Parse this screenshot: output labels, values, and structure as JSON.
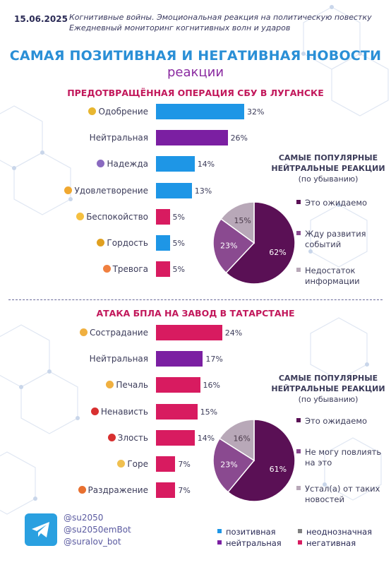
{
  "header": {
    "date": "15.06.2025",
    "subtitle_1": "Когнитивные войны. Эмоциональная реакция на политическую повестку",
    "subtitle_2": "Ежедневный мониторинг когнитивных волн и ударов",
    "title": "САМАЯ ПОЗИТИВНАЯ И НЕГАТИВНАЯ НОВОСТИ",
    "title_2": "реакции"
  },
  "colors": {
    "positive": "#1e96e6",
    "neutral": "#7b1fa2",
    "negative": "#d81b60",
    "ambiguous": "#808080",
    "pie_dark": "#5a1055",
    "pie_mid": "#8a4a90",
    "pie_light": "#b8a8b8"
  },
  "chart_data": [
    {
      "type": "bar",
      "title": "ПРЕДОТВРАЩЁННАЯ ОПЕРАЦИЯ СБУ В ЛУГАНСКЕ",
      "categories": [
        "Одобрение",
        "Нейтральная",
        "Надежда",
        "Удовлетворение",
        "Беспокойство",
        "Гордость",
        "Тревога"
      ],
      "values": [
        32,
        26,
        14,
        13,
        5,
        5,
        5
      ],
      "value_labels": [
        "32%",
        "26%",
        "14%",
        "13%",
        "5%",
        "5%",
        "5%"
      ],
      "sentiment": [
        "positive",
        "neutral",
        "positive",
        "positive",
        "negative",
        "positive",
        "negative"
      ],
      "emoji_icons": [
        "handshake-icon",
        "",
        "hands-icon",
        "smile-icon",
        "worried-icon",
        "trophy-icon",
        "anxious-icon"
      ]
    },
    {
      "type": "pie",
      "title": "САМЫЕ ПОПУЛЯРНЫЕ НЕЙТРАЛЬНЫЕ РЕАКЦИИ",
      "subtitle": "(по убыванию)",
      "slices": [
        {
          "label": "Это ожидаемо",
          "value": 62,
          "text": "62%"
        },
        {
          "label": "Жду развития событий",
          "value": 23,
          "text": "23%"
        },
        {
          "label": "Недостаток информации",
          "value": 15,
          "text": "15%"
        }
      ],
      "legend_lines": [
        [
          "Это ожидаемо"
        ],
        [
          "Жду развития",
          "событий"
        ],
        [
          "Недостаток",
          "информации"
        ]
      ]
    },
    {
      "type": "bar",
      "title": "АТАКА БПЛА НА ЗАВОД В ТАТАРСТАНЕ",
      "categories": [
        "Сострадание",
        "Нейтральная",
        "Печаль",
        "Ненависть",
        "Злость",
        "Горе",
        "Раздражение"
      ],
      "values": [
        24,
        17,
        16,
        15,
        14,
        7,
        7
      ],
      "value_labels": [
        "24%",
        "17%",
        "16%",
        "15%",
        "14%",
        "7%",
        "7%"
      ],
      "sentiment": [
        "negative",
        "neutral",
        "negative",
        "negative",
        "negative",
        "negative",
        "negative"
      ],
      "emoji_icons": [
        "sad-face-icon",
        "",
        "sad-face-icon",
        "angry-face-icon",
        "angry-face-icon",
        "crying-face-icon",
        "annoyed-face-icon"
      ]
    },
    {
      "type": "pie",
      "title": "САМЫЕ ПОПУЛЯРНЫЕ НЕЙТРАЛЬНЫЕ РЕАКЦИИ",
      "subtitle": "(по убыванию)",
      "slices": [
        {
          "label": "Это ожидаемо",
          "value": 61,
          "text": "61%"
        },
        {
          "label": "Не могу повлиять на это",
          "value": 23,
          "text": "23%"
        },
        {
          "label": "Устал(а) от таких новостей",
          "value": 16,
          "text": "16%"
        }
      ],
      "legend_lines": [
        [
          "Это ожидаемо"
        ],
        [
          "Не могу повлиять",
          "на это"
        ],
        [
          "Устал(а) от таких",
          "новостей"
        ]
      ]
    }
  ],
  "footer": {
    "socials": [
      "@su2050",
      "@su2050emBot",
      "@suralov_bot"
    ],
    "legend": {
      "positive": "позитивная",
      "ambiguous": "неоднозначная",
      "neutral": "нейтральная",
      "negative": "негативная"
    }
  }
}
